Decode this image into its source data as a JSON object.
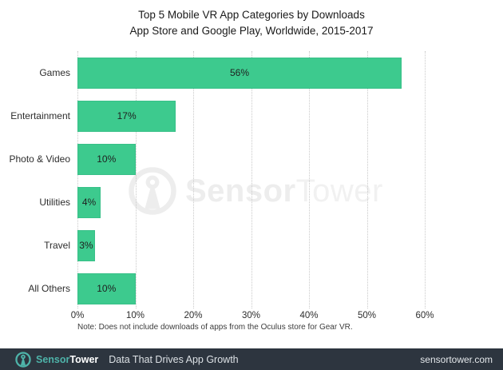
{
  "title": {
    "line1": "Top 5 Mobile VR App Categories by Downloads",
    "line2": "App Store and Google Play, Worldwide, 2015-2017"
  },
  "chart_data": {
    "type": "bar",
    "orientation": "horizontal",
    "title": "Top 5 Mobile VR App Categories by Downloads — App Store and Google Play, Worldwide, 2015-2017",
    "categories": [
      "Games",
      "Entertainment",
      "Photo & Video",
      "Utilities",
      "Travel",
      "All Others"
    ],
    "values": [
      56,
      17,
      10,
      4,
      3,
      10
    ],
    "value_labels": [
      "56%",
      "17%",
      "10%",
      "4%",
      "3%",
      "10%"
    ],
    "x_ticks": [
      "0%",
      "10%",
      "20%",
      "30%",
      "40%",
      "50%",
      "60%"
    ],
    "x_tick_values": [
      0,
      10,
      20,
      30,
      40,
      50,
      60
    ],
    "xlim": [
      0,
      60
    ],
    "grid": "vertical-dotted",
    "legend": "none",
    "bar_color": "#3dca8e"
  },
  "note": "Note: Does not include downloads of apps from the Oculus store for Gear VR.",
  "watermark": {
    "brand_bold": "Sensor",
    "brand_light": "Tower"
  },
  "footer": {
    "brand_bold": "Sensor",
    "brand_light": "Tower",
    "tagline": "Data That Drives App Growth",
    "website": "sensortower.com",
    "background": "#2d353f",
    "accent": "#4eb3a9"
  }
}
